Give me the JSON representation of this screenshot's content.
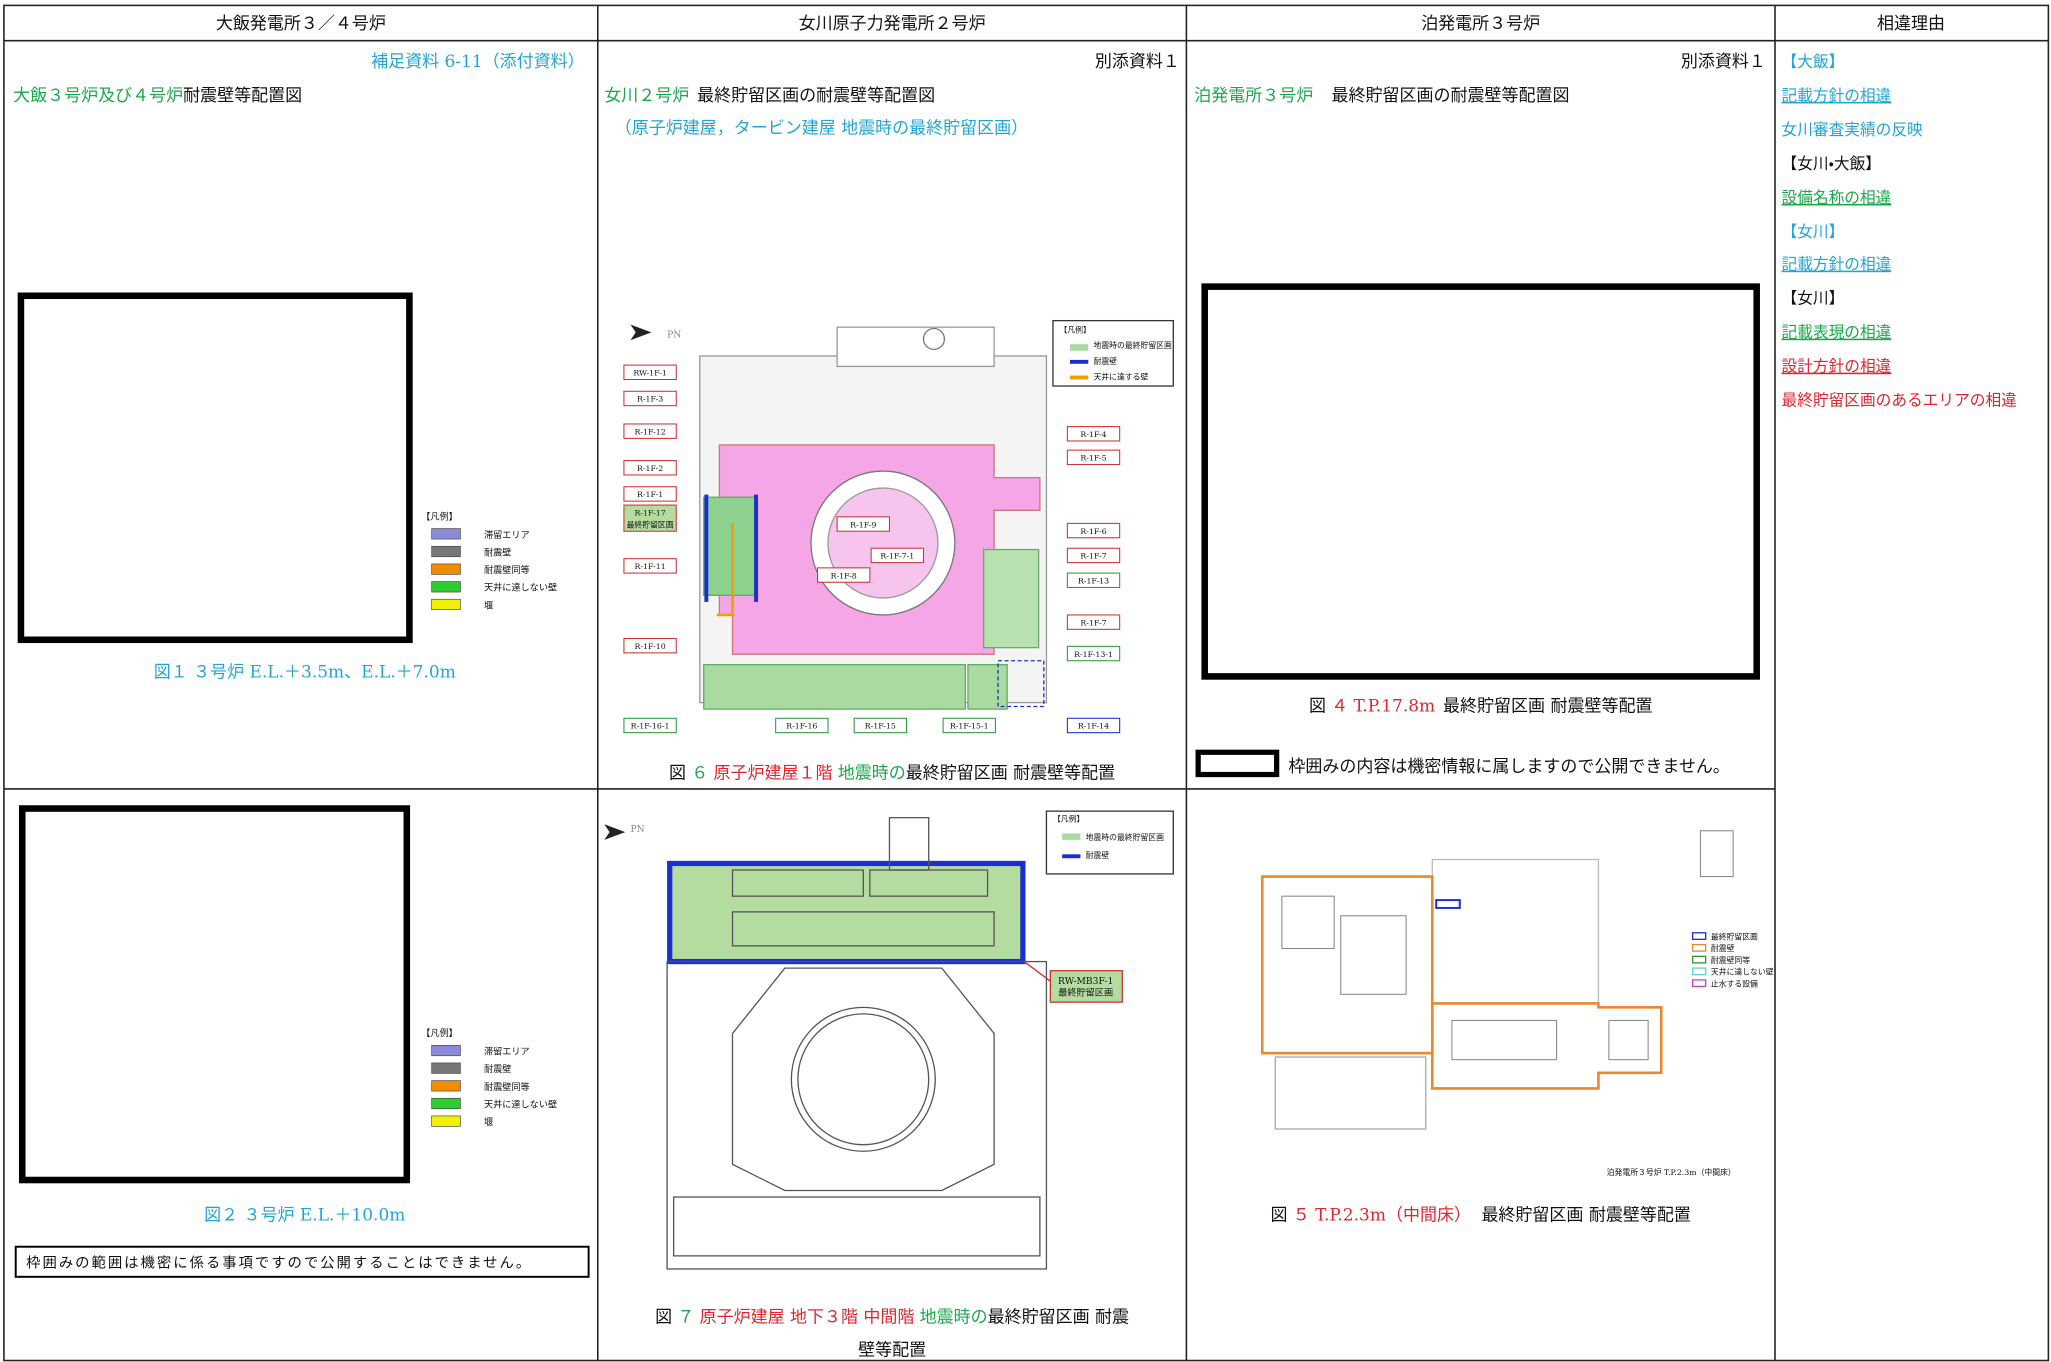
{
  "header": [
    "大飯発電所３／４号炉",
    "女川原子力発電所２号炉",
    "泊発電所３号炉",
    "相違理由"
  ],
  "oi": {
    "supplement": "補足資料 6-11（添付資料）",
    "title": [
      "大飯３号炉及び４号炉",
      "耐震壁等配置図"
    ],
    "legend": {
      "title": "【凡例】",
      "items": [
        "滞留エリア",
        "耐震壁",
        "耐震壁同等",
        "天井に達しない壁",
        "堰"
      ]
    },
    "fig1": "図１ ３号炉 E.L.＋3.5m、E.L.＋7.0m",
    "fig2": "図２ ３号炉 E.L.＋10.0m",
    "note": "枠囲みの範囲は機密に係る事項ですので公開することはできません。"
  },
  "onagawa": {
    "attachment": "別添資料１",
    "title": [
      "女川２号炉",
      "最終貯留区画の耐震壁等配置図"
    ],
    "subtitle": "（原子炉建屋，タービン建屋 地震時の最終貯留区画）",
    "north": "PN",
    "plan1_legend": [
      "【凡例】",
      "地震時の最終貯留区画",
      "耐震壁",
      "天井に達する壁"
    ],
    "plan1_labels": [
      "RW-1F-1",
      "R-1F-3",
      "R-1F-12",
      "R-1F-2",
      "R-1F-1",
      "R-1F-17",
      "最終貯留区画",
      "R-1F-11",
      "R-1F-10",
      "R-1F-16-1",
      "R-1F-16",
      "R-1F-15",
      "R-1F-15-1",
      "R-1F-14",
      "R-1F-4",
      "R-1F-5",
      "R-1F-6",
      "R-1F-7",
      "R-1F-13",
      "R-1F-7",
      "R-1F-13-1",
      "R-1F-9",
      "R-1F-7-1",
      "R-1F-8"
    ],
    "fig6": [
      "図",
      "６",
      "原子炉建屋１階",
      "地震時の",
      "最終貯留区画 耐震壁等配置"
    ],
    "plan2_legend": [
      "【凡例】",
      "地震時の最終貯留区画",
      "耐震壁"
    ],
    "plan2_label": [
      "RW-MB3F-1",
      "最終貯留区画"
    ],
    "fig7": [
      "図",
      "７",
      "原子炉建屋 地下３階 中間階",
      "地震時の",
      "最終貯留区画 耐震",
      "壁等配置"
    ]
  },
  "tomari": {
    "attachment": "別添資料１",
    "title": [
      "泊発電所３号炉",
      "最終貯留区画の耐震壁等配置図"
    ],
    "fig4": [
      "図",
      "４ T.P.17.8m",
      "最終貯留区画 耐震壁等配置"
    ],
    "note": "枠囲みの内容は機密情報に属しますので公開できません。",
    "plan_legend": [
      "最終貯留区画",
      "耐震壁",
      "耐震壁同等",
      "天井に達しない壁",
      "止水する設備"
    ],
    "plan_caption": "泊発電所３号炉 T.P.2.3m（中間床）",
    "fig5": [
      "図",
      "５ T.P.2.3m（中間床）",
      "最終貯留区画 耐震壁等配置"
    ]
  },
  "reasons": [
    "【大飯】",
    "記載方針の相違",
    "女川審査実績の反映",
    "【女川・大飯】",
    "設備名称の相違",
    "【女川】",
    "記載方針の相違",
    "【女川】",
    "記載表現の相違",
    "設計方針の相違",
    "最終貯留区画のあるエリアの相違"
  ]
}
